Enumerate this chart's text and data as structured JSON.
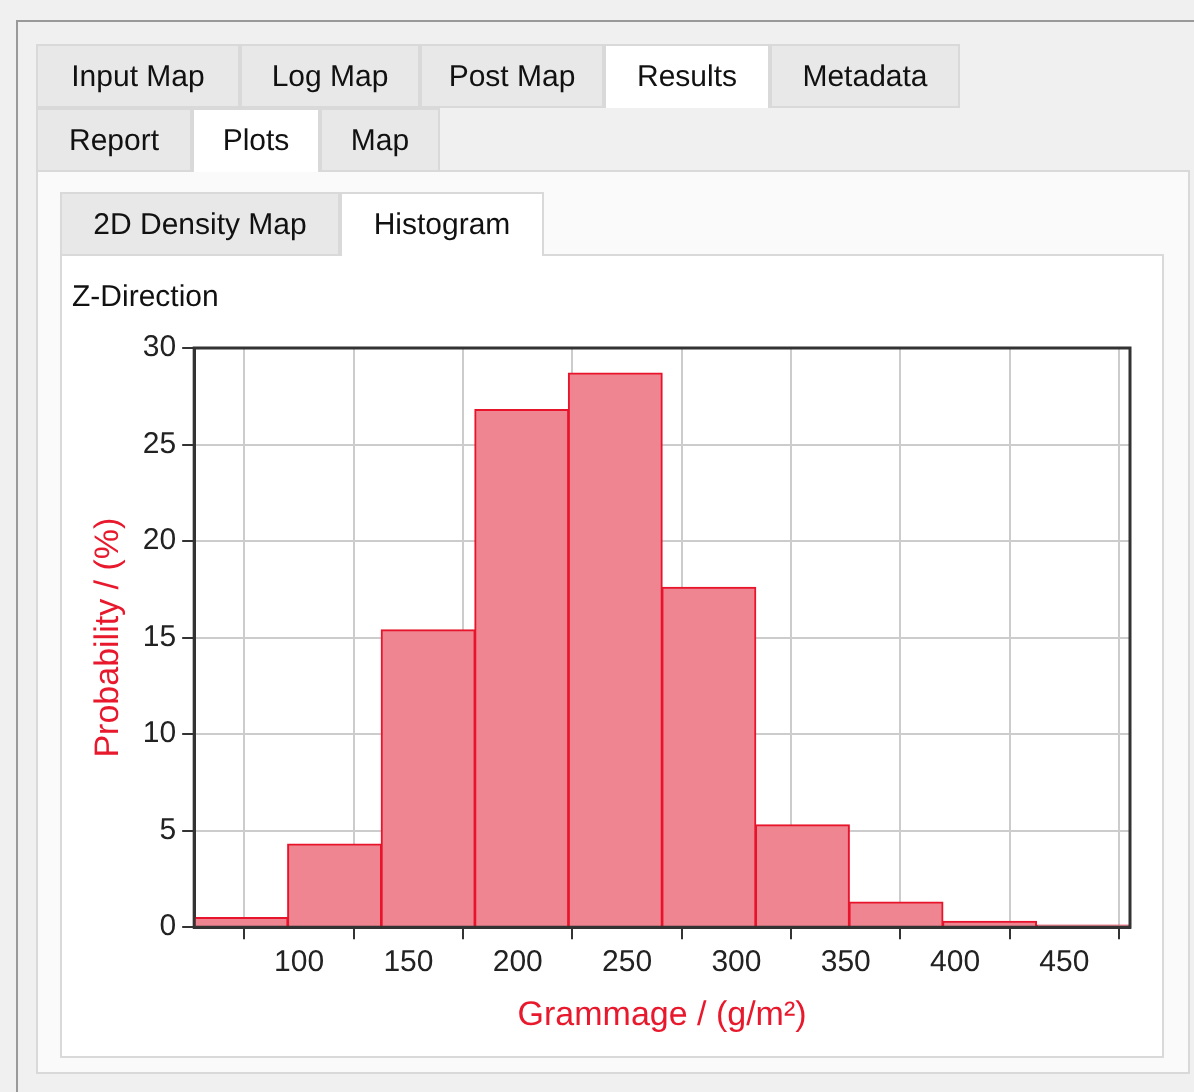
{
  "chart_data": {
    "type": "histogram",
    "title": "Z-Direction",
    "xlabel": "Grammage / (g/m²)",
    "ylabel": "Probability / (%)",
    "annotations": [
      "Input Map",
      "Log Map",
      "Post Map",
      "Results",
      "Metadata",
      "Report",
      "Plots",
      "Map",
      "2D Density Map",
      "Histogram"
    ],
    "bins": [
      52,
      94.8,
      137.6,
      180.4,
      223.2,
      266,
      308.8,
      351.6,
      394.4,
      437.2,
      480
    ],
    "values": [
      0.5,
      4.3,
      15.4,
      26.8,
      28.7,
      17.6,
      5.3,
      1.3,
      0.3,
      0.1
    ],
    "color": "#ef8590",
    "xlim": [
      52,
      480
    ],
    "xticks": [
      100,
      150,
      200,
      250,
      300,
      350,
      400,
      450
    ],
    "ylim": [
      0,
      30
    ],
    "yticks": [
      0,
      5,
      10,
      15,
      20,
      25,
      30
    ],
    "grid": true,
    "legend": false
  }
}
